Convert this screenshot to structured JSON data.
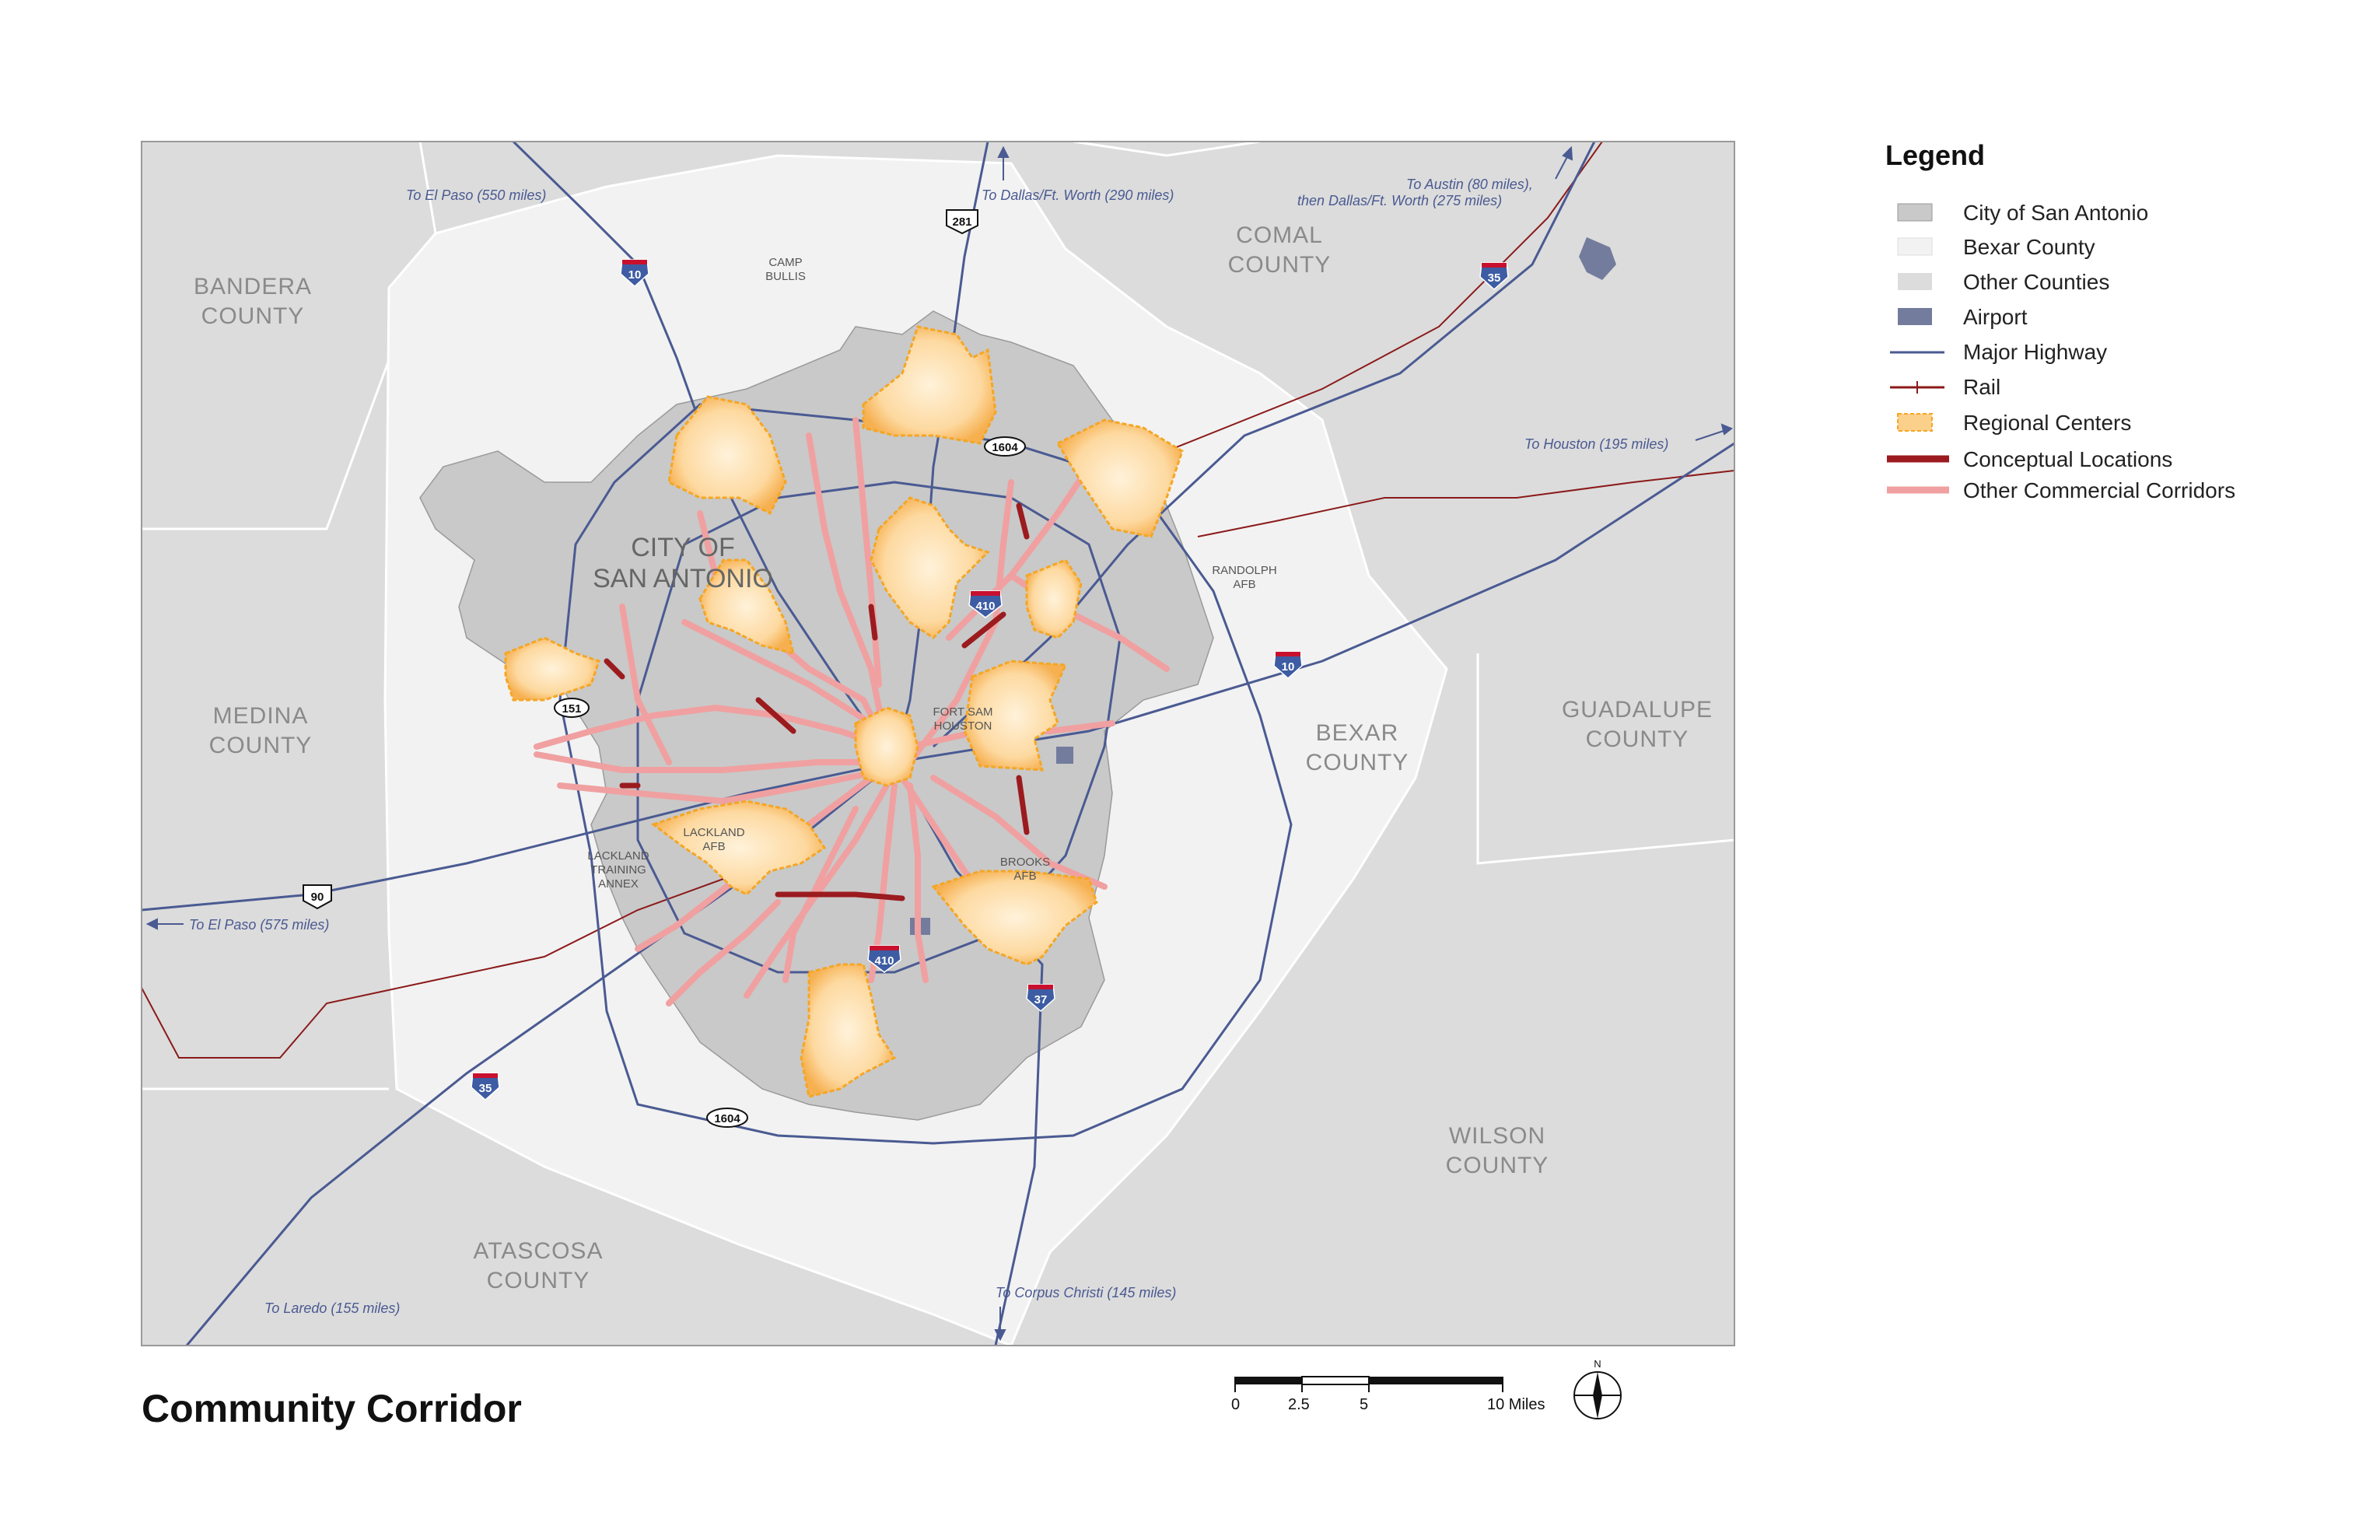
{
  "map_title": "Community Corridor",
  "legend": {
    "title": "Legend",
    "items": [
      {
        "label": "City of San Antonio",
        "symbol": "fill",
        "color": "#c9c9c9"
      },
      {
        "label": "Bexar County",
        "symbol": "fill",
        "color": "#f2f2f2"
      },
      {
        "label": "Other Counties",
        "symbol": "fill",
        "color": "#dcdcdc"
      },
      {
        "label": "Airport",
        "symbol": "fill",
        "color": "#737c9c"
      },
      {
        "label": "Major Highway",
        "symbol": "line",
        "color": "#4a5a92"
      },
      {
        "label": "Rail",
        "symbol": "rail",
        "color": "#8b1a1a"
      },
      {
        "label": "Regional Centers",
        "symbol": "dashed-fill",
        "color": "#f5a623"
      },
      {
        "label": "Conceptual Locations",
        "symbol": "thick-line",
        "color": "#9b1b1f"
      },
      {
        "label": "Other Commercial Corridors",
        "symbol": "thick-line",
        "color": "#f0a0a0"
      }
    ]
  },
  "counties": {
    "bandera": [
      "BANDERA",
      "COUNTY"
    ],
    "comal": [
      "COMAL",
      "COUNTY"
    ],
    "medina": [
      "MEDINA",
      "COUNTY"
    ],
    "bexar": [
      "BEXAR",
      "COUNTY"
    ],
    "guadalupe": [
      "GUADALUPE",
      "COUNTY"
    ],
    "wilson": [
      "WILSON",
      "COUNTY"
    ],
    "atascosa": [
      "ATASCOSA",
      "COUNTY"
    ]
  },
  "city": [
    "CITY OF",
    "SAN ANTONIO"
  ],
  "places": {
    "camp_bullis": [
      "CAMP",
      "BULLIS"
    ],
    "randolph": [
      "RANDOLPH",
      "AFB"
    ],
    "fort_sam": [
      "FORT SAM",
      "HOUSTON"
    ],
    "lackland": [
      "LACKLAND",
      "AFB"
    ],
    "lackland_annex": [
      "LACKLAND",
      "TRAINING",
      "ANNEX"
    ],
    "brooks": [
      "BROOKS",
      "AFB"
    ]
  },
  "destinations": {
    "el_paso_north": "To El Paso (550 miles)",
    "dallas": "To Dallas/Ft. Worth (290 miles)",
    "austin_1": "To Austin (80 miles),",
    "austin_2": "then Dallas/Ft. Worth (275 miles)",
    "houston": "To Houston (195 miles)",
    "el_paso_west": "To El Paso (575 miles)",
    "laredo": "To Laredo (155 miles)",
    "corpus": "To Corpus Christi (145 miles)"
  },
  "shields": {
    "i10_nw": "10",
    "i10_e": "10",
    "i35_ne": "35",
    "i35_sw": "35",
    "i37": "37",
    "i410_n": "410",
    "i410_s": "410",
    "us90": "90",
    "us281": "281",
    "lp1604_n": "1604",
    "lp1604_s": "1604",
    "sh151": "151"
  },
  "scale_bar": {
    "ticks": [
      "0",
      "2.5",
      "5",
      "10 Miles"
    ]
  },
  "north_arrow": "N"
}
